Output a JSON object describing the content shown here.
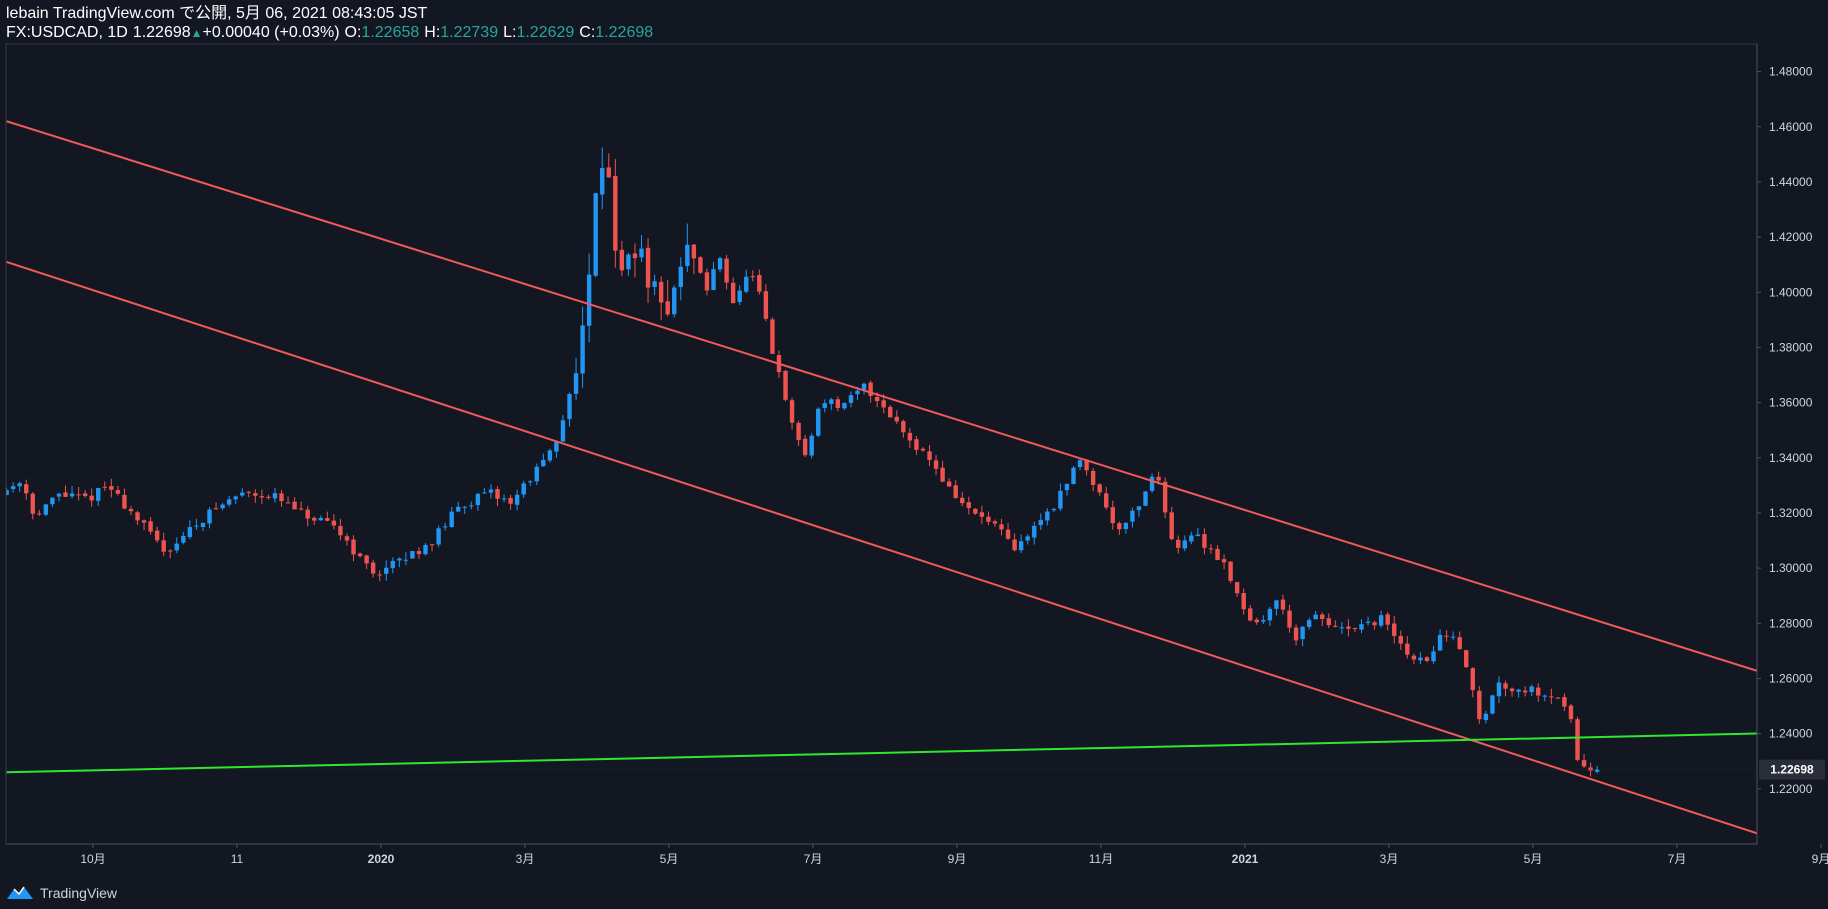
{
  "header": {
    "published_line": "lebain TradingView.com で公開, 5月 06, 2021 08:43:05 JST",
    "symbol": "FX:USDCAD, 1D",
    "last": "1.22698",
    "change": "+0.00040 (+0.03%)",
    "o_label": "O:",
    "o_value": "1.22658",
    "h_label": "H:",
    "h_value": "1.22739",
    "l_label": "L:",
    "l_value": "1.22629",
    "c_label": "C:",
    "c_value": "1.22698"
  },
  "footer": {
    "brand": "TradingView"
  },
  "colors": {
    "background": "#131722",
    "up": "#2196f3",
    "down": "#ef5350",
    "channel": "#f05a5a",
    "support": "#2ee82e",
    "axis_text": "#d1d4dc",
    "price_tag_bg": "#2a2e39"
  },
  "chart_data": {
    "type": "candlestick",
    "symbol": "FX:USDCAD",
    "interval": "1D",
    "y_ticks": [
      "1.48000",
      "1.46000",
      "1.44000",
      "1.42000",
      "1.40000",
      "1.38000",
      "1.36000",
      "1.34000",
      "1.32000",
      "1.30000",
      "1.28000",
      "1.26000",
      "1.24000",
      "1.22000"
    ],
    "ylim": [
      1.2,
      1.49
    ],
    "x_ticks": [
      {
        "label": "10月",
        "t": 0
      },
      {
        "label": "11",
        "t": 1
      },
      {
        "label": "2020",
        "t": 2
      },
      {
        "label": "3月",
        "t": 3
      },
      {
        "label": "5月",
        "t": 4
      },
      {
        "label": "7月",
        "t": 5
      },
      {
        "label": "9月",
        "t": 6
      },
      {
        "label": "11月",
        "t": 7
      },
      {
        "label": "2021",
        "t": 8
      },
      {
        "label": "3月",
        "t": 9
      },
      {
        "label": "5月",
        "t": 10
      },
      {
        "label": "7月",
        "t": 11
      },
      {
        "label": "9月",
        "t": 12
      }
    ],
    "xlim": [
      -0.6,
      13.25
    ],
    "last_price": "1.22698",
    "last_value": 1.22698,
    "price_path": [
      [
        -0.6,
        1.327
      ],
      [
        -0.45,
        1.332
      ],
      [
        -0.35,
        1.318
      ],
      [
        -0.2,
        1.327
      ],
      [
        0,
        1.325
      ],
      [
        0.15,
        1.33
      ],
      [
        0.35,
        1.318
      ],
      [
        0.55,
        1.306
      ],
      [
        0.85,
        1.32
      ],
      [
        1.1,
        1.328
      ],
      [
        1.3,
        1.326
      ],
      [
        1.55,
        1.318
      ],
      [
        1.75,
        1.314
      ],
      [
        1.92,
        1.302
      ],
      [
        2.0,
        1.298
      ],
      [
        2.2,
        1.303
      ],
      [
        2.4,
        1.31
      ],
      [
        2.6,
        1.323
      ],
      [
        2.8,
        1.327
      ],
      [
        2.95,
        1.324
      ],
      [
        3.1,
        1.334
      ],
      [
        3.2,
        1.34
      ],
      [
        3.26,
        1.344
      ],
      [
        3.32,
        1.356
      ],
      [
        3.4,
        1.375
      ],
      [
        3.48,
        1.395
      ],
      [
        3.55,
        1.45
      ],
      [
        3.62,
        1.448
      ],
      [
        3.7,
        1.402
      ],
      [
        3.8,
        1.418
      ],
      [
        3.9,
        1.406
      ],
      [
        4.0,
        1.391
      ],
      [
        4.12,
        1.408
      ],
      [
        4.2,
        1.418
      ],
      [
        4.3,
        1.4
      ],
      [
        4.4,
        1.413
      ],
      [
        4.5,
        1.395
      ],
      [
        4.6,
        1.408
      ],
      [
        4.68,
        1.398
      ],
      [
        4.75,
        1.381
      ],
      [
        4.9,
        1.352
      ],
      [
        5.0,
        1.34
      ],
      [
        5.1,
        1.362
      ],
      [
        5.25,
        1.358
      ],
      [
        5.4,
        1.366
      ],
      [
        5.55,
        1.358
      ],
      [
        5.7,
        1.348
      ],
      [
        5.85,
        1.34
      ],
      [
        6.0,
        1.328
      ],
      [
        6.15,
        1.32
      ],
      [
        6.3,
        1.316
      ],
      [
        6.45,
        1.306
      ],
      [
        6.55,
        1.313
      ],
      [
        6.75,
        1.325
      ],
      [
        6.9,
        1.34
      ],
      [
        7.05,
        1.326
      ],
      [
        7.15,
        1.314
      ],
      [
        7.3,
        1.322
      ],
      [
        7.42,
        1.336
      ],
      [
        7.55,
        1.308
      ],
      [
        7.7,
        1.312
      ],
      [
        7.9,
        1.302
      ],
      [
        8.05,
        1.284
      ],
      [
        8.15,
        1.278
      ],
      [
        8.25,
        1.29
      ],
      [
        8.4,
        1.275
      ],
      [
        8.55,
        1.283
      ],
      [
        8.7,
        1.277
      ],
      [
        8.85,
        1.278
      ],
      [
        9.0,
        1.282
      ],
      [
        9.15,
        1.27
      ],
      [
        9.3,
        1.265
      ],
      [
        9.4,
        1.276
      ],
      [
        9.55,
        1.272
      ],
      [
        9.68,
        1.243
      ],
      [
        9.8,
        1.258
      ],
      [
        10.0,
        1.256
      ],
      [
        10.2,
        1.254
      ],
      [
        10.3,
        1.248
      ],
      [
        10.35,
        1.232
      ],
      [
        10.4,
        1.229
      ],
      [
        10.48,
        1.227
      ]
    ],
    "trendlines": [
      {
        "name": "upper-channel",
        "color": "#f05a5a",
        "from": [
          -0.6,
          1.462
        ],
        "to": [
          13.25,
          1.235
        ]
      },
      {
        "name": "lower-channel",
        "color": "#f05a5a",
        "from": [
          -0.6,
          1.411
        ],
        "to": [
          13.25,
          1.175
        ]
      },
      {
        "name": "support",
        "color": "#2ee82e",
        "from": [
          -0.6,
          1.226
        ],
        "to": [
          13.25,
          1.242
        ]
      }
    ]
  }
}
